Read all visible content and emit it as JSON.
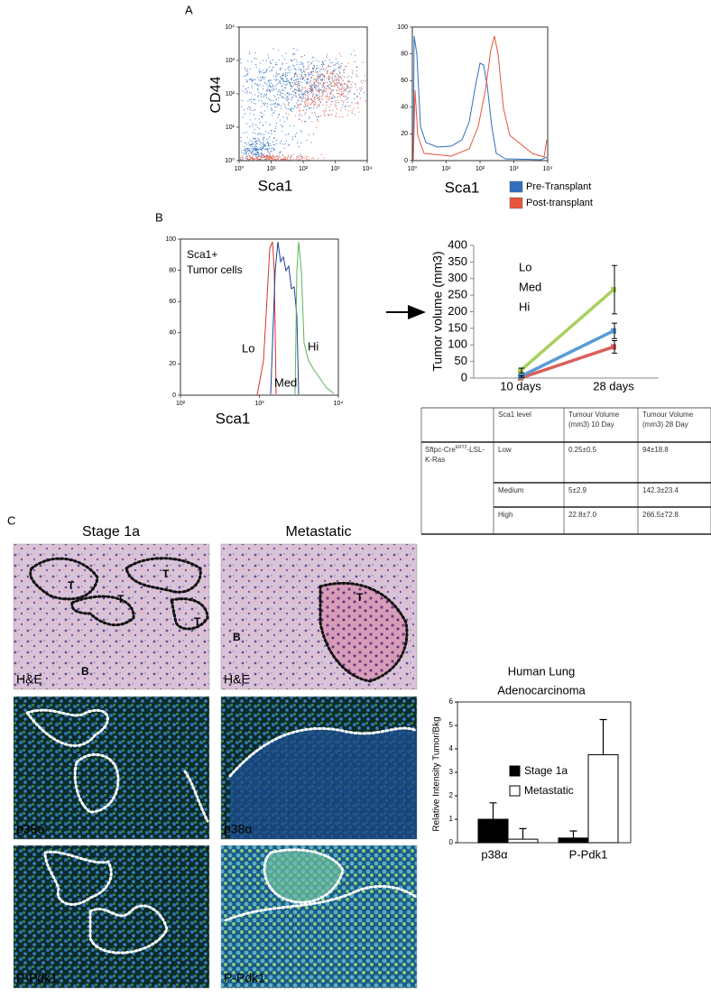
{
  "figure": {
    "panel_labels": [
      "A",
      "B",
      "C"
    ],
    "panel_a": {
      "scatter": {
        "xlabel": "Sca1",
        "ylabel": "CD44",
        "log": true,
        "xlim": [
          1,
          10000
        ],
        "ylim": [
          1,
          10000
        ],
        "xticks": [
          {
            "value": 1,
            "label": "10⁰"
          },
          {
            "value": 10,
            "label": "10¹"
          },
          {
            "value": 100,
            "label": "10²"
          },
          {
            "value": 1000,
            "label": "10³"
          },
          {
            "value": 10000,
            "label": "10⁴"
          }
        ],
        "yticks": [
          {
            "value": 1,
            "label": "10⁰"
          },
          {
            "value": 10,
            "label": "10¹"
          },
          {
            "value": 100,
            "label": "10²"
          },
          {
            "value": 1000,
            "label": "10³"
          },
          {
            "value": 10000,
            "label": "10⁴"
          }
        ]
      },
      "histogram": {
        "xlabel": "Sca1",
        "log": true,
        "xlim": [
          1,
          10000
        ],
        "ylim": [
          0,
          100
        ],
        "xticks": [
          {
            "value": 1,
            "label": "10⁰"
          },
          {
            "value": 10,
            "label": "10¹"
          },
          {
            "value": 100,
            "label": "10²"
          },
          {
            "value": 1000,
            "label": "10³"
          },
          {
            "value": 10000,
            "label": "10⁴"
          }
        ],
        "yticks": [
          0,
          20,
          40,
          60,
          80,
          100
        ]
      },
      "legend": [
        {
          "name": "Pre-Transplant",
          "color": "#2f6fc0"
        },
        {
          "name": "Post-transplant",
          "color": "#e8553a"
        }
      ]
    },
    "panel_b": {
      "histogram": {
        "annotation": [
          "Sca1+",
          "Tumor cells"
        ],
        "gates": [
          "Lo",
          "Med",
          "Hi"
        ],
        "xlabel": "Sca1",
        "log": true,
        "xlim": [
          100,
          10000
        ],
        "ylim": [
          0,
          100
        ],
        "xticks": [
          {
            "value": 100,
            "label": "10²"
          },
          {
            "value": 1000,
            "label": "10³"
          },
          {
            "value": 10000,
            "label": "10⁴"
          }
        ],
        "yticks": [
          0,
          20,
          40,
          60,
          80,
          100
        ]
      }
    },
    "table": {
      "columns": [
        "Sca1 level",
        "Tumour Volume (mm3) 10 Day",
        "Tumour Volume (mm3) 28 Day"
      ],
      "genotype": {
        "prefix": "Sftpc-Cre",
        "superscript": "ERT2",
        "suffix": "-LSL-K-Ras"
      },
      "rows": [
        [
          "Low",
          "0.25±0.5",
          "94±18.8"
        ],
        [
          "Medium",
          "5±2.9",
          "142.3±23.4"
        ],
        [
          "High",
          "22.8±7.0",
          "266.5±72.8"
        ]
      ]
    },
    "panel_c": {
      "columns": [
        "Stage 1a",
        "Metastatic"
      ],
      "stains": [
        "H&E",
        "p38α",
        "P-Pdk1"
      ],
      "region_labels": {
        "tumor": "T",
        "background": "B"
      }
    }
  },
  "chart_data": [
    {
      "type": "line",
      "ylabel": "Tumor volume (mm3)",
      "categories": [
        "10 days",
        "28 days"
      ],
      "ylim": [
        0,
        400
      ],
      "yticks": [
        0,
        50,
        100,
        150,
        200,
        250,
        300,
        350,
        400
      ],
      "series": [
        {
          "name": "Lo",
          "color": "#d9605a",
          "values": [
            0.25,
            94
          ],
          "errors": [
            0.5,
            18.8
          ]
        },
        {
          "name": "Med",
          "color": "#5b9bd5",
          "values": [
            5,
            142.3
          ],
          "errors": [
            2.9,
            23.4
          ]
        },
        {
          "name": "Hi",
          "color": "#a9cf5f",
          "values": [
            22.8,
            266.5
          ],
          "errors": [
            7.0,
            72.8
          ]
        }
      ]
    },
    {
      "type": "bar",
      "title": [
        "Human Lung",
        "Adenocarcinoma"
      ],
      "ylabel": "Relative Intensity Tumor/Bkg",
      "categories": [
        "p38α",
        "P-Pdk1"
      ],
      "ylim": [
        0,
        6
      ],
      "yticks": [
        0,
        1,
        2,
        3,
        4,
        5,
        6
      ],
      "series": [
        {
          "name": "Stage 1a",
          "color": "#000000",
          "values": [
            1.0,
            0.2
          ],
          "errors": [
            0.7,
            0.3
          ]
        },
        {
          "name": "Metastatic",
          "color": "#ffffff",
          "values": [
            0.15,
            3.75
          ],
          "errors": [
            0.45,
            1.5
          ]
        }
      ]
    }
  ]
}
